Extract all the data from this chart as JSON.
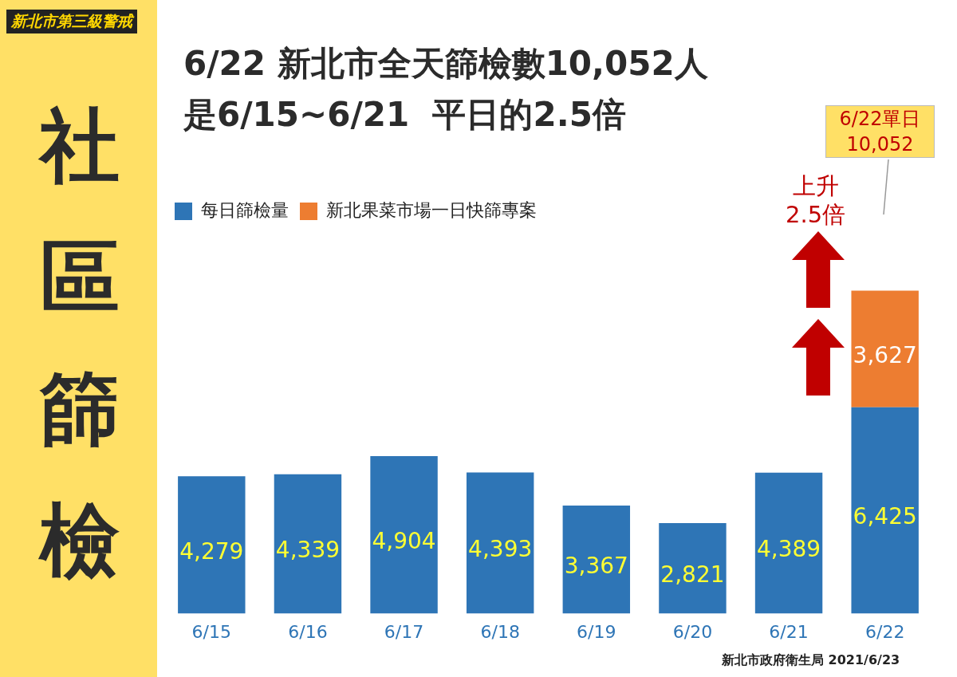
{
  "chart_data": {
    "type": "bar",
    "title": "6/22 新北市全天篩檢數10,052人",
    "subtitle": "是6/15~6/21  平日的2.5倍",
    "categories": [
      "6/15",
      "6/16",
      "6/17",
      "6/18",
      "6/19",
      "6/20",
      "6/21",
      "6/22"
    ],
    "series": [
      {
        "name": "每日篩檢量",
        "color": "#2e75b6",
        "values": [
          4279,
          4339,
          4904,
          4393,
          3367,
          2821,
          4389,
          6425
        ],
        "value_labels": [
          "4,279",
          "4,339",
          "4,904",
          "4,393",
          "3,367",
          "2,821",
          "4,389",
          "6,425"
        ]
      },
      {
        "name": "新北果菜市場一日快篩專案",
        "color": "#ed7d31",
        "values": [
          null,
          null,
          null,
          null,
          null,
          null,
          null,
          3627
        ],
        "value_labels": [
          null,
          null,
          null,
          null,
          null,
          null,
          null,
          "3,627"
        ]
      }
    ],
    "stacked": true,
    "legend": "top left",
    "grid": false,
    "tick_labels": "x",
    "annotations": [
      "新北市第三級警戒",
      "社區篩檢",
      "上升\n2.5倍",
      "6/22單日\n10,052",
      "新北市政府衛生局 2021/6/23"
    ]
  }
}
